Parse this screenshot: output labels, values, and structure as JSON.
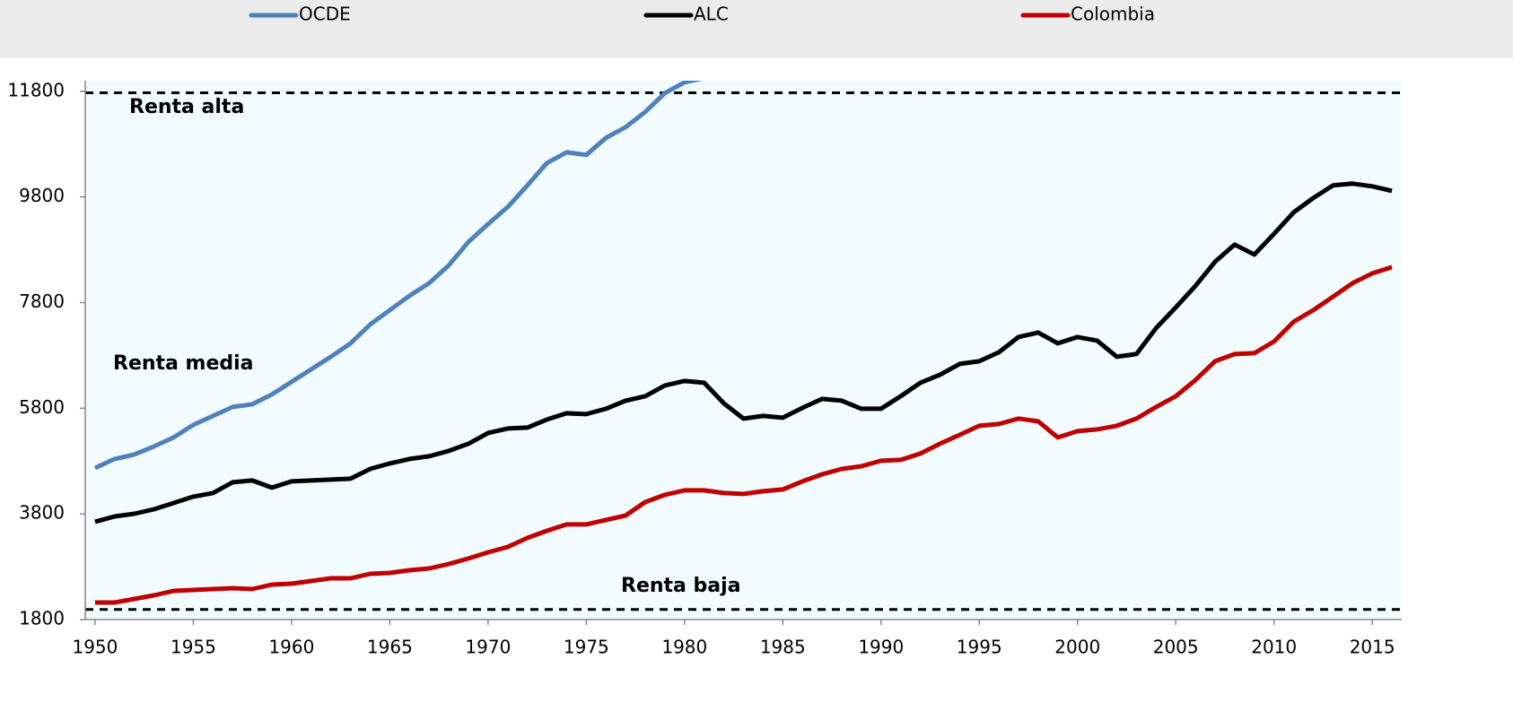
{
  "chart_data": {
    "type": "line",
    "x": [
      1950,
      1951,
      1952,
      1953,
      1954,
      1955,
      1956,
      1957,
      1958,
      1959,
      1960,
      1961,
      1962,
      1963,
      1964,
      1965,
      1966,
      1967,
      1968,
      1969,
      1970,
      1971,
      1972,
      1973,
      1974,
      1975,
      1976,
      1977,
      1978,
      1979,
      1980,
      1981,
      1982,
      1983,
      1984,
      1985,
      1986,
      1987,
      1988,
      1989,
      1990,
      1991,
      1992,
      1993,
      1994,
      1995,
      1996,
      1997,
      1998,
      1999,
      2000,
      2001,
      2002,
      2003,
      2004,
      2005,
      2006,
      2007,
      2008,
      2009,
      2010,
      2011,
      2012,
      2013,
      2014,
      2015,
      2016
    ],
    "series": [
      {
        "name": "OCDE",
        "color": "#4f81bd",
        "values": [
          4669,
          4839,
          4924,
          5077,
          5247,
          5484,
          5654,
          5824,
          5875,
          6061,
          6299,
          6537,
          6774,
          7029,
          7386,
          7657,
          7929,
          8167,
          8506,
          8948,
          9287,
          9610,
          10017,
          10442,
          10645,
          10594,
          10917,
          11121,
          11410,
          11766,
          11970,
          12050,
          null,
          null,
          null,
          null,
          null,
          null,
          null,
          null,
          null,
          null,
          null,
          null,
          null,
          null,
          null,
          null,
          null,
          null,
          null,
          null,
          null,
          null,
          null,
          null,
          null,
          null,
          null,
          null,
          null,
          null,
          null,
          null,
          null,
          null,
          null
        ]
      },
      {
        "name": "ALC",
        "color": "#000000",
        "values": [
          3651,
          3752,
          3803,
          3888,
          4007,
          4126,
          4194,
          4398,
          4432,
          4296,
          4415,
          4432,
          4449,
          4466,
          4652,
          4754,
          4839,
          4890,
          4992,
          5128,
          5331,
          5416,
          5433,
          5586,
          5705,
          5688,
          5790,
          5943,
          6027,
          6231,
          6316,
          6282,
          5892,
          5603,
          5654,
          5620,
          5807,
          5977,
          5943,
          5790,
          5790,
          6027,
          6282,
          6435,
          6639,
          6690,
          6859,
          7148,
          7233,
          7029,
          7148,
          7080,
          6774,
          6825,
          7318,
          7708,
          8116,
          8574,
          8897,
          8710,
          9101,
          9508,
          9780,
          10017,
          10051,
          10000,
          9915
        ]
      },
      {
        "name": "Colombia",
        "color": "#c00000",
        "values": [
          2123,
          2123,
          2190,
          2258,
          2343,
          2360,
          2377,
          2394,
          2377,
          2462,
          2479,
          2530,
          2581,
          2581,
          2666,
          2683,
          2734,
          2768,
          2853,
          2955,
          3073,
          3175,
          3345,
          3481,
          3600,
          3600,
          3685,
          3769,
          4024,
          4160,
          4245,
          4245,
          4194,
          4177,
          4228,
          4262,
          4415,
          4550,
          4652,
          4703,
          4805,
          4822,
          4941,
          5128,
          5297,
          5467,
          5501,
          5603,
          5552,
          5247,
          5365,
          5399,
          5467,
          5603,
          5824,
          6027,
          6333,
          6690,
          6825,
          6842,
          7063,
          7437,
          7657,
          7912,
          8167,
          8353,
          8472
        ]
      }
    ],
    "xlim": [
      1949.5,
      2016.5
    ],
    "xticks": [
      1950,
      1955,
      1960,
      1965,
      1970,
      1975,
      1980,
      1985,
      1990,
      1995,
      2000,
      2005,
      2010,
      2015
    ],
    "ylim": [
      1800,
      12000
    ],
    "yticks": [
      1800,
      3800,
      5800,
      7800,
      9800,
      11800
    ],
    "hlines": [
      11770,
      1990
    ],
    "annotations": [
      {
        "text": "Renta alta"
      },
      {
        "text": "Renta media"
      },
      {
        "text": "Renta baja"
      }
    ],
    "legend": "top"
  }
}
